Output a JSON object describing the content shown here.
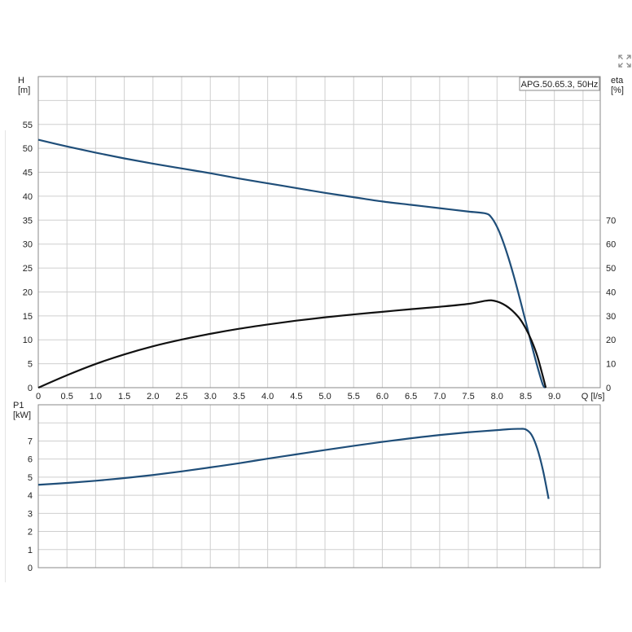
{
  "chart_data": [
    {
      "type": "line",
      "title": "APG.50.65.3, 50Hz",
      "xlabel": "Q [l/s]",
      "ylabel": "H\n[m]",
      "y2label": "eta\n[%]",
      "xlim": [
        0,
        9.8
      ],
      "ylim": [
        0,
        65
      ],
      "y2lim": [
        0,
        130
      ],
      "grid": true,
      "x_ticks": [
        "0",
        "0.5",
        "1.0",
        "1.5",
        "2.0",
        "2.5",
        "3.0",
        "3.5",
        "4.0",
        "4.5",
        "5.0",
        "5.5",
        "6.0",
        "6.5",
        "7.0",
        "7.5",
        "8.0",
        "8.5",
        "9.0"
      ],
      "y_ticks": [
        "0",
        "5",
        "10",
        "15",
        "20",
        "25",
        "30",
        "35",
        "40",
        "45",
        "50",
        "55"
      ],
      "y2_ticks": [
        "0",
        "10",
        "20",
        "30",
        "40",
        "50",
        "60",
        "70"
      ],
      "series": [
        {
          "axis": "left",
          "color": "#1f4e79",
          "x": [
            0,
            0.5,
            1.0,
            1.5,
            2.0,
            2.5,
            3.0,
            3.5,
            4.0,
            4.5,
            5.0,
            5.5,
            6.0,
            6.5,
            7.0,
            7.5,
            7.8,
            7.9,
            8.0,
            8.1,
            8.2,
            8.3,
            8.4,
            8.5,
            8.6,
            8.7,
            8.8,
            8.85
          ],
          "values": [
            51.8,
            50.4,
            49.1,
            47.9,
            46.8,
            45.8,
            44.8,
            43.7,
            42.7,
            41.7,
            40.7,
            39.8,
            38.9,
            38.2,
            37.5,
            36.8,
            36.4,
            35.6,
            33.6,
            30.7,
            27.1,
            23.0,
            18.5,
            13.8,
            9.1,
            4.6,
            0.6,
            0
          ]
        },
        {
          "axis": "right",
          "color": "#111111",
          "x": [
            0,
            0.5,
            1.0,
            1.5,
            2.0,
            2.5,
            3.0,
            3.5,
            4.0,
            4.5,
            5.0,
            5.5,
            6.0,
            6.5,
            7.0,
            7.5,
            7.8,
            7.9,
            8.0,
            8.1,
            8.2,
            8.3,
            8.4,
            8.5,
            8.6,
            8.7,
            8.8,
            8.85
          ],
          "values": [
            0,
            5.2,
            9.9,
            13.9,
            17.3,
            20.1,
            22.5,
            24.6,
            26.4,
            28.0,
            29.4,
            30.6,
            31.7,
            32.8,
            33.8,
            35.0,
            36.3,
            36.5,
            36.0,
            35.0,
            33.5,
            31.4,
            28.7,
            24.8,
            19.8,
            13.4,
            4.7,
            0
          ]
        }
      ]
    },
    {
      "type": "line",
      "xlabel": "",
      "ylabel": "P1\n[kW]",
      "xlim": [
        0,
        9.8
      ],
      "ylim": [
        0,
        9
      ],
      "grid": true,
      "y_ticks": [
        "0",
        "1",
        "2",
        "3",
        "4",
        "5",
        "6",
        "7"
      ],
      "series": [
        {
          "color": "#1f4e79",
          "x": [
            0,
            0.5,
            1.0,
            1.5,
            2.0,
            2.5,
            3.0,
            3.5,
            4.0,
            4.5,
            5.0,
            5.5,
            6.0,
            6.5,
            7.0,
            7.5,
            8.0,
            8.2,
            8.4,
            8.5,
            8.6,
            8.7,
            8.8,
            8.9
          ],
          "values": [
            4.58,
            4.68,
            4.8,
            4.95,
            5.12,
            5.32,
            5.54,
            5.77,
            6.02,
            6.26,
            6.5,
            6.73,
            6.95,
            7.15,
            7.33,
            7.48,
            7.6,
            7.65,
            7.67,
            7.64,
            7.35,
            6.6,
            5.4,
            3.8
          ]
        }
      ]
    }
  ],
  "icons": {
    "expand": "expand-icon"
  }
}
